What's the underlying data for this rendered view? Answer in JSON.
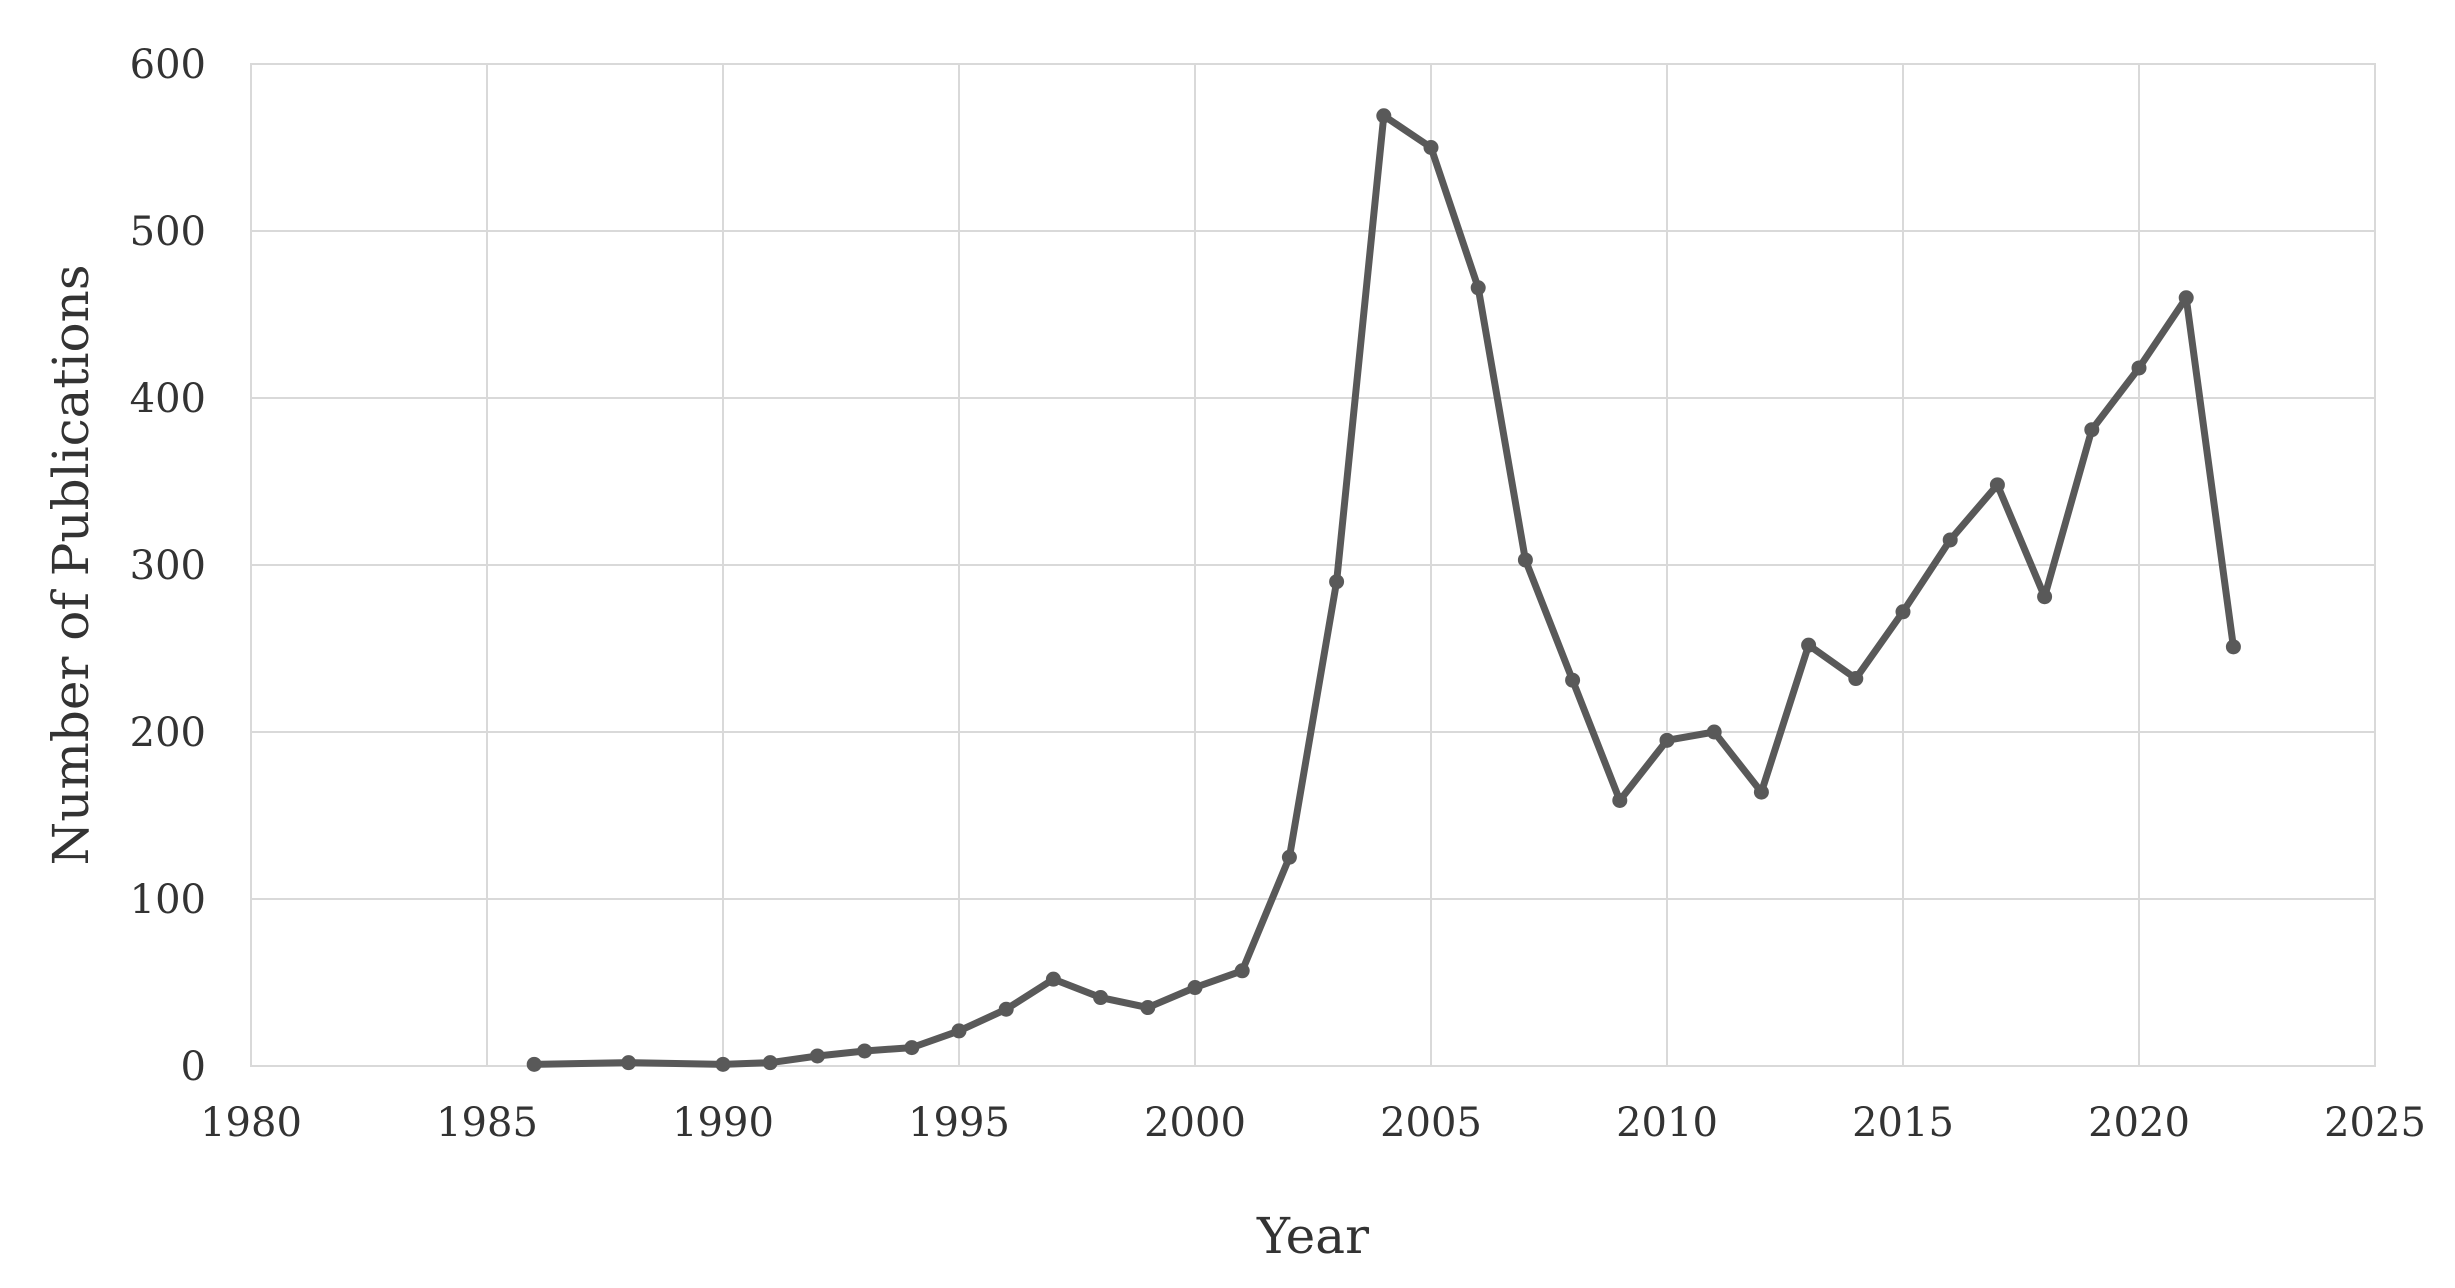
{
  "chart_data": {
    "type": "line",
    "title": "",
    "xlabel": "Year",
    "ylabel": "Number of Publications",
    "xlim": [
      1980,
      2025
    ],
    "ylim": [
      0,
      600
    ],
    "x_ticks": [
      1980,
      1985,
      1990,
      1995,
      2000,
      2005,
      2010,
      2015,
      2020,
      2025
    ],
    "y_ticks": [
      0,
      100,
      200,
      300,
      400,
      500,
      600
    ],
    "grid": true,
    "legend": "none",
    "line_color": "#595959",
    "series": [
      {
        "x": [
          1986,
          1988,
          1990,
          1991,
          1992,
          1993,
          1994,
          1995,
          1996,
          1997,
          1998,
          1999,
          2000,
          2001,
          2002,
          2003,
          2004,
          2005,
          2006,
          2007,
          2008,
          2009,
          2010,
          2011,
          2012,
          2013,
          2014,
          2015,
          2016,
          2017,
          2018,
          2019,
          2020,
          2021,
          2022
        ],
        "values": [
          1,
          2,
          1,
          2,
          6,
          9,
          11,
          21,
          34,
          52,
          41,
          35,
          47,
          57,
          125,
          290,
          569,
          550,
          466,
          303,
          231,
          159,
          195,
          200,
          164,
          252,
          232,
          272,
          315,
          348,
          281,
          381,
          418,
          460,
          251
        ]
      }
    ]
  }
}
